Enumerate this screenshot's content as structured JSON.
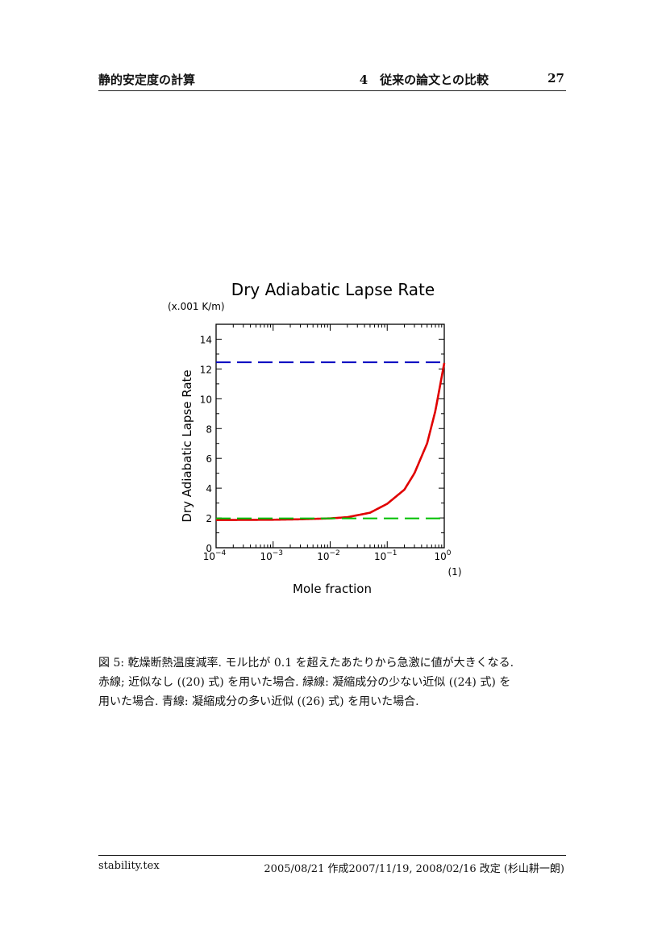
{
  "header": {
    "left": "静的安定度の計算",
    "section": "4　従来の論文との比較",
    "page": "27"
  },
  "chart_data": {
    "type": "line",
    "title": "Dry Adiabatic Lapse Rate",
    "subtitle": "(x.001 K/m)",
    "xlabel": "Mole fraction",
    "xunit": "(1)",
    "ylabel": "Dry Adiabatic Lapse Rate",
    "x_scale": "log",
    "xlim": [
      0.0001,
      1
    ],
    "ylim": [
      0,
      15
    ],
    "xticks": [
      {
        "value": 0.0001,
        "base": "10",
        "exp": "−4"
      },
      {
        "value": 0.001,
        "base": "10",
        "exp": "−3"
      },
      {
        "value": 0.01,
        "base": "10",
        "exp": "−2"
      },
      {
        "value": 0.1,
        "base": "10",
        "exp": "−1"
      },
      {
        "value": 1,
        "base": "10",
        "exp": "0"
      }
    ],
    "yticks": [
      0,
      2,
      4,
      6,
      8,
      10,
      12,
      14
    ],
    "grid": false,
    "series": [
      {
        "color": "#e00000",
        "style": "solid",
        "x": [
          0.0001,
          0.001,
          0.003,
          0.01,
          0.02,
          0.05,
          0.1,
          0.2,
          0.3,
          0.5,
          0.7,
          1.0
        ],
        "y": [
          1.86,
          1.88,
          1.91,
          1.97,
          2.05,
          2.35,
          2.95,
          3.9,
          5.0,
          7.0,
          9.2,
          12.4
        ]
      },
      {
        "color": "#00c000",
        "style": "dashed",
        "x": [
          0.0001,
          1.0
        ],
        "y": [
          1.97,
          1.97
        ]
      },
      {
        "color": "#0000c0",
        "style": "dashed",
        "x": [
          0.0001,
          1.0
        ],
        "y": [
          12.45,
          12.45
        ]
      }
    ]
  },
  "caption": {
    "lines": [
      "図 5: 乾燥断熱温度減率. モル比が 0.1 を超えたあたりから急激に値が大きくなる.",
      "赤線; 近似なし ((20) 式) を用いた場合. 緑線: 凝縮成分の少ない近似 ((24) 式) を",
      "用いた場合. 青線: 凝縮成分の多い近似 ((26) 式) を用いた場合."
    ]
  },
  "footer": {
    "left": "stability.tex",
    "right": "2005/08/21 作成2007/11/19, 2008/02/16 改定 (杉山耕一朗)"
  }
}
